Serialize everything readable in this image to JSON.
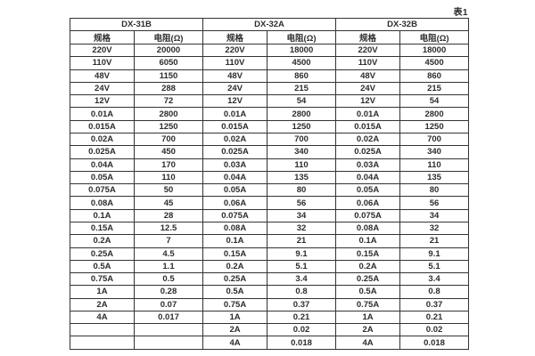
{
  "page": {
    "caption": "表1"
  },
  "table": {
    "groups": [
      {
        "name": "DX-31B",
        "spec_header": "规格",
        "resistance_header": "电阻(Ω)"
      },
      {
        "name": "DX-32A",
        "spec_header": "规格",
        "resistance_header": "电阻(Ω)"
      },
      {
        "name": "DX-32B",
        "spec_header": "规格",
        "resistance_header": "电阻(Ω)"
      }
    ],
    "rows": [
      [
        "220V",
        "20000",
        "220V",
        "18000",
        "220V",
        "18000"
      ],
      [
        "110V",
        "6050",
        "110V",
        "4500",
        "110V",
        "4500"
      ],
      [
        "48V",
        "1150",
        "48V",
        "860",
        "48V",
        "860"
      ],
      [
        "24V",
        "288",
        "24V",
        "215",
        "24V",
        "215"
      ],
      [
        "12V",
        "72",
        "12V",
        "54",
        "12V",
        "54"
      ],
      [
        "0.01A",
        "2800",
        "0.01A",
        "2800",
        "0.01A",
        "2800"
      ],
      [
        "0.015A",
        "1250",
        "0.015A",
        "1250",
        "0.015A",
        "1250"
      ],
      [
        "0.02A",
        "700",
        "0.02A",
        "700",
        "0.02A",
        "700"
      ],
      [
        "0.025A",
        "450",
        "0.025A",
        "340",
        "0.025A",
        "340"
      ],
      [
        "0.04A",
        "170",
        "0.03A",
        "110",
        "0.03A",
        "110"
      ],
      [
        "0.05A",
        "110",
        "0.04A",
        "135",
        "0.04A",
        "135"
      ],
      [
        "0.075A",
        "50",
        "0.05A",
        "80",
        "0.05A",
        "80"
      ],
      [
        "0.08A",
        "45",
        "0.06A",
        "56",
        "0.06A",
        "56"
      ],
      [
        "0.1A",
        "28",
        "0.075A",
        "34",
        "0.075A",
        "34"
      ],
      [
        "0.15A",
        "12.5",
        "0.08A",
        "32",
        "0.08A",
        "32"
      ],
      [
        "0.2A",
        "7",
        "0.1A",
        "21",
        "0.1A",
        "21"
      ],
      [
        "0.25A",
        "4.5",
        "0.15A",
        "9.1",
        "0.15A",
        "9.1"
      ],
      [
        "0.5A",
        "1.1",
        "0.2A",
        "5.1",
        "0.2A",
        "5.1"
      ],
      [
        "0.75A",
        "0.5",
        "0.25A",
        "3.4",
        "0.25A",
        "3.4"
      ],
      [
        "1A",
        "0.28",
        "0.5A",
        "0.8",
        "0.5A",
        "0.8"
      ],
      [
        "2A",
        "0.07",
        "0.75A",
        "0.37",
        "0.75A",
        "0.37"
      ],
      [
        "4A",
        "0.017",
        "1A",
        "0.21",
        "1A",
        "0.21"
      ],
      [
        "",
        "",
        "2A",
        "0.02",
        "2A",
        "0.02"
      ],
      [
        "",
        "",
        "4A",
        "0.018",
        "4A",
        "0.018"
      ]
    ]
  },
  "colors": {
    "border": "#333333",
    "text": "#2d2d2d",
    "background": "#ffffff"
  }
}
